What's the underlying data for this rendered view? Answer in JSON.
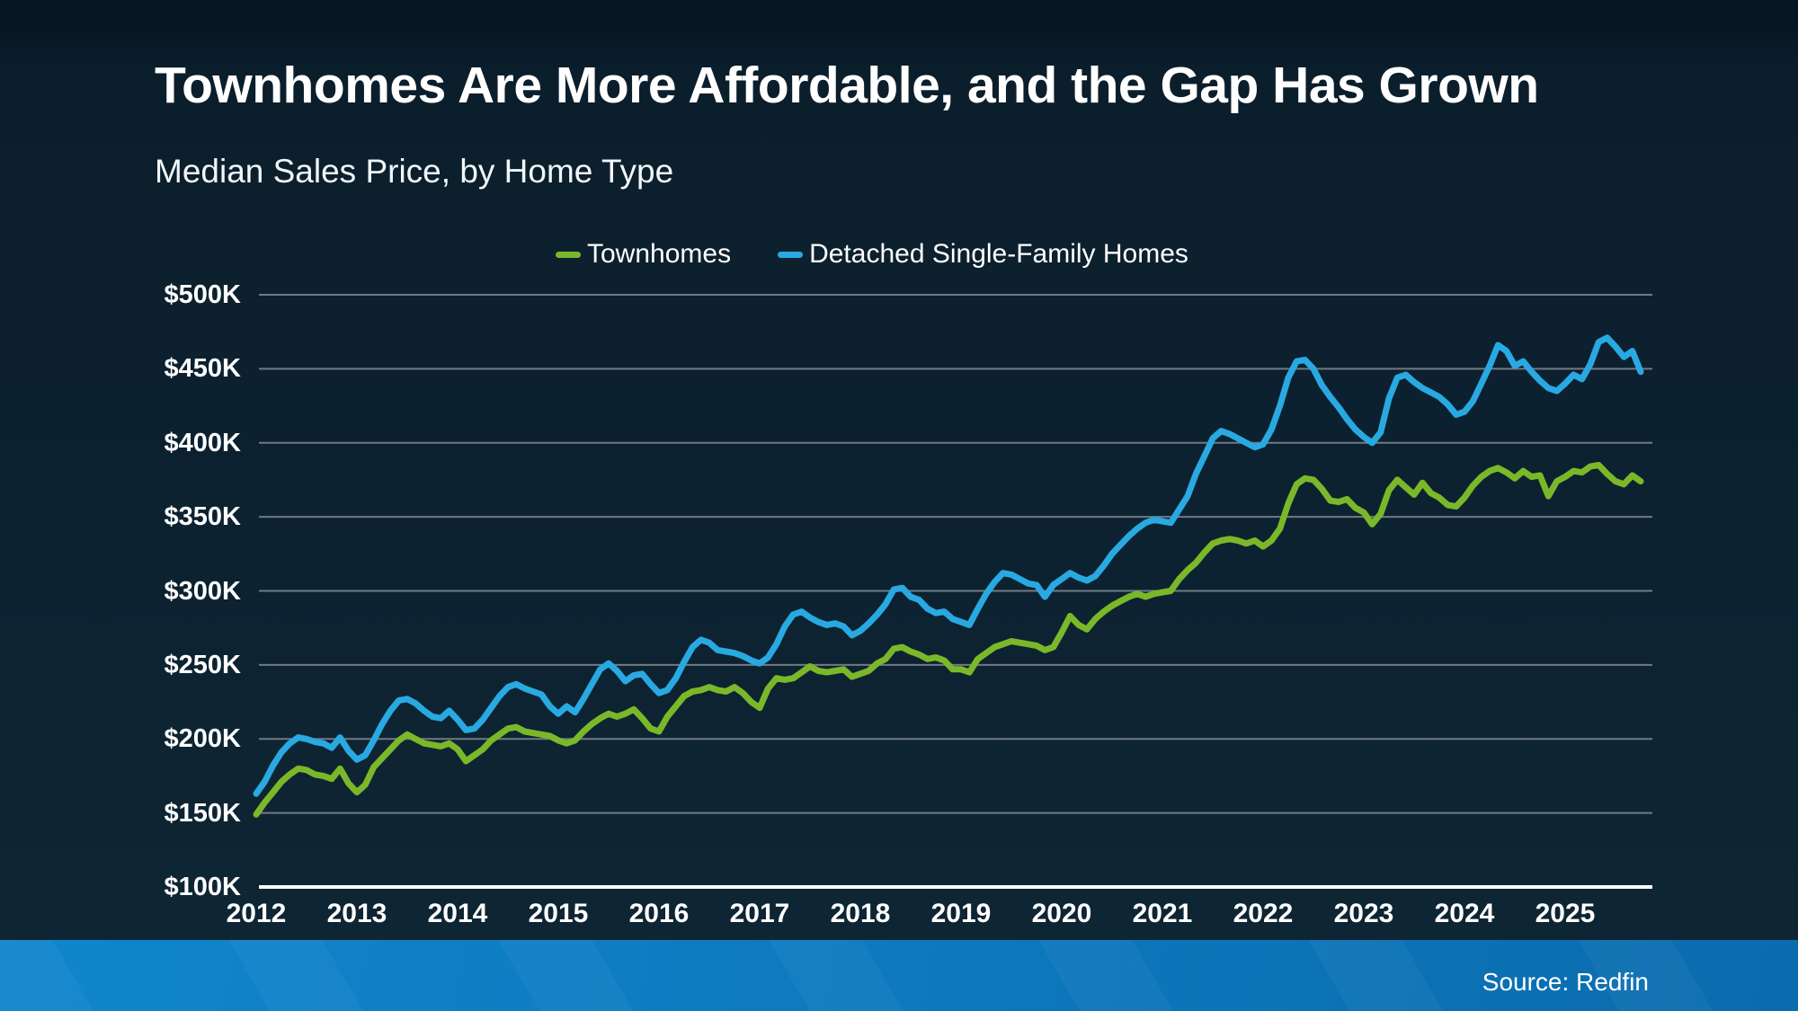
{
  "header": {
    "title": "Townhomes Are More Affordable, and the Gap Has Grown",
    "subtitle": "Median Sales Price, by Home Type"
  },
  "legend": {
    "items": [
      {
        "label": "Townhomes",
        "color": "#7ab829"
      },
      {
        "label": "Detached Single-Family Homes",
        "color": "#29a9e1"
      }
    ]
  },
  "footer": {
    "source": "Source: Redfin"
  },
  "colors": {
    "background": "#0d2231",
    "gridline": "#828a92",
    "axis_line": "#ffffff",
    "text": "#ffffff",
    "bottom_bar_left": "#1186cd",
    "bottom_bar_right": "#0a6cae"
  },
  "chart_data": {
    "type": "line",
    "title": "Townhomes Are More Affordable, and the Gap Has Grown",
    "subtitle": "Median Sales Price, by Home Type",
    "xlabel": "",
    "ylabel": "Median Sales Price",
    "x_unit": "month",
    "x_start": "2012-01",
    "x_end": "2025-10",
    "x_tick_labels": [
      "2012",
      "2013",
      "2014",
      "2015",
      "2016",
      "2017",
      "2018",
      "2019",
      "2020",
      "2021",
      "2022",
      "2023",
      "2024",
      "2025"
    ],
    "y_ticks": [
      {
        "label": "$500K",
        "value": 500
      },
      {
        "label": "$450K",
        "value": 450
      },
      {
        "label": "$400K",
        "value": 400
      },
      {
        "label": "$350K",
        "value": 350
      },
      {
        "label": "$300K",
        "value": 300
      },
      {
        "label": "$250K",
        "value": 250
      },
      {
        "label": "$200K",
        "value": 200
      },
      {
        "label": "$150K",
        "value": 150
      },
      {
        "label": "$100K",
        "value": 100
      }
    ],
    "ylim": [
      100,
      500
    ],
    "values_unit": "USD thousands",
    "grid": "horizontal",
    "legend_position": "top",
    "series": [
      {
        "name": "Townhomes",
        "color": "#7ab829",
        "values": [
          149,
          157,
          164,
          171,
          176,
          180,
          179,
          176,
          175,
          173,
          180,
          170,
          164,
          169,
          181,
          187,
          193,
          199,
          203,
          200,
          197,
          196,
          195,
          197,
          193,
          185,
          189,
          193,
          199,
          203,
          207,
          208,
          205,
          204,
          203,
          202,
          199,
          197,
          199,
          205,
          210,
          214,
          217,
          215,
          217,
          220,
          214,
          207,
          205,
          215,
          222,
          229,
          232,
          233,
          235,
          233,
          232,
          235,
          231,
          225,
          221,
          234,
          241,
          240,
          241,
          245,
          249,
          246,
          245,
          246,
          247,
          242,
          244,
          246,
          251,
          254,
          261,
          262,
          259,
          257,
          254,
          255,
          253,
          247,
          247,
          245,
          254,
          258,
          262,
          264,
          266,
          265,
          264,
          263,
          260,
          262,
          272,
          283,
          277,
          274,
          281,
          286,
          290,
          293,
          296,
          298,
          296,
          298,
          299,
          300,
          308,
          314,
          319,
          326,
          332,
          334,
          335,
          334,
          332,
          334,
          330,
          334,
          342,
          359,
          372,
          376,
          375,
          369,
          361,
          360,
          362,
          356,
          353,
          345,
          352,
          368,
          375,
          370,
          365,
          373,
          366,
          363,
          358,
          357,
          363,
          371,
          377,
          381,
          383,
          380,
          376,
          381,
          377,
          378,
          364,
          374,
          377,
          381,
          380,
          384,
          385,
          379,
          374,
          372,
          378,
          374
        ]
      },
      {
        "name": "Detached Single-Family Homes",
        "color": "#29a9e1",
        "values": [
          163,
          171,
          182,
          191,
          197,
          201,
          200,
          198,
          197,
          194,
          201,
          192,
          186,
          189,
          199,
          210,
          219,
          226,
          227,
          224,
          219,
          215,
          214,
          219,
          213,
          206,
          207,
          213,
          221,
          229,
          235,
          237,
          234,
          232,
          230,
          222,
          217,
          222,
          218,
          227,
          237,
          247,
          251,
          246,
          239,
          243,
          244,
          237,
          231,
          233,
          241,
          252,
          262,
          267,
          265,
          260,
          259,
          258,
          256,
          253,
          251,
          255,
          264,
          276,
          284,
          286,
          282,
          279,
          277,
          278,
          276,
          270,
          273,
          278,
          284,
          291,
          301,
          302,
          296,
          294,
          288,
          285,
          286,
          281,
          279,
          277,
          288,
          298,
          306,
          312,
          311,
          308,
          305,
          304,
          296,
          304,
          308,
          312,
          309,
          307,
          310,
          317,
          325,
          331,
          337,
          342,
          346,
          348,
          347,
          346,
          355,
          364,
          379,
          391,
          403,
          408,
          406,
          403,
          400,
          397,
          399,
          409,
          425,
          444,
          455,
          456,
          450,
          439,
          431,
          424,
          416,
          409,
          404,
          400,
          407,
          430,
          444,
          446,
          441,
          437,
          434,
          431,
          426,
          419,
          421,
          428,
          440,
          452,
          466,
          462,
          452,
          455,
          448,
          442,
          437,
          435,
          440,
          446,
          443,
          453,
          468,
          471,
          465,
          458,
          462,
          448
        ]
      }
    ]
  }
}
